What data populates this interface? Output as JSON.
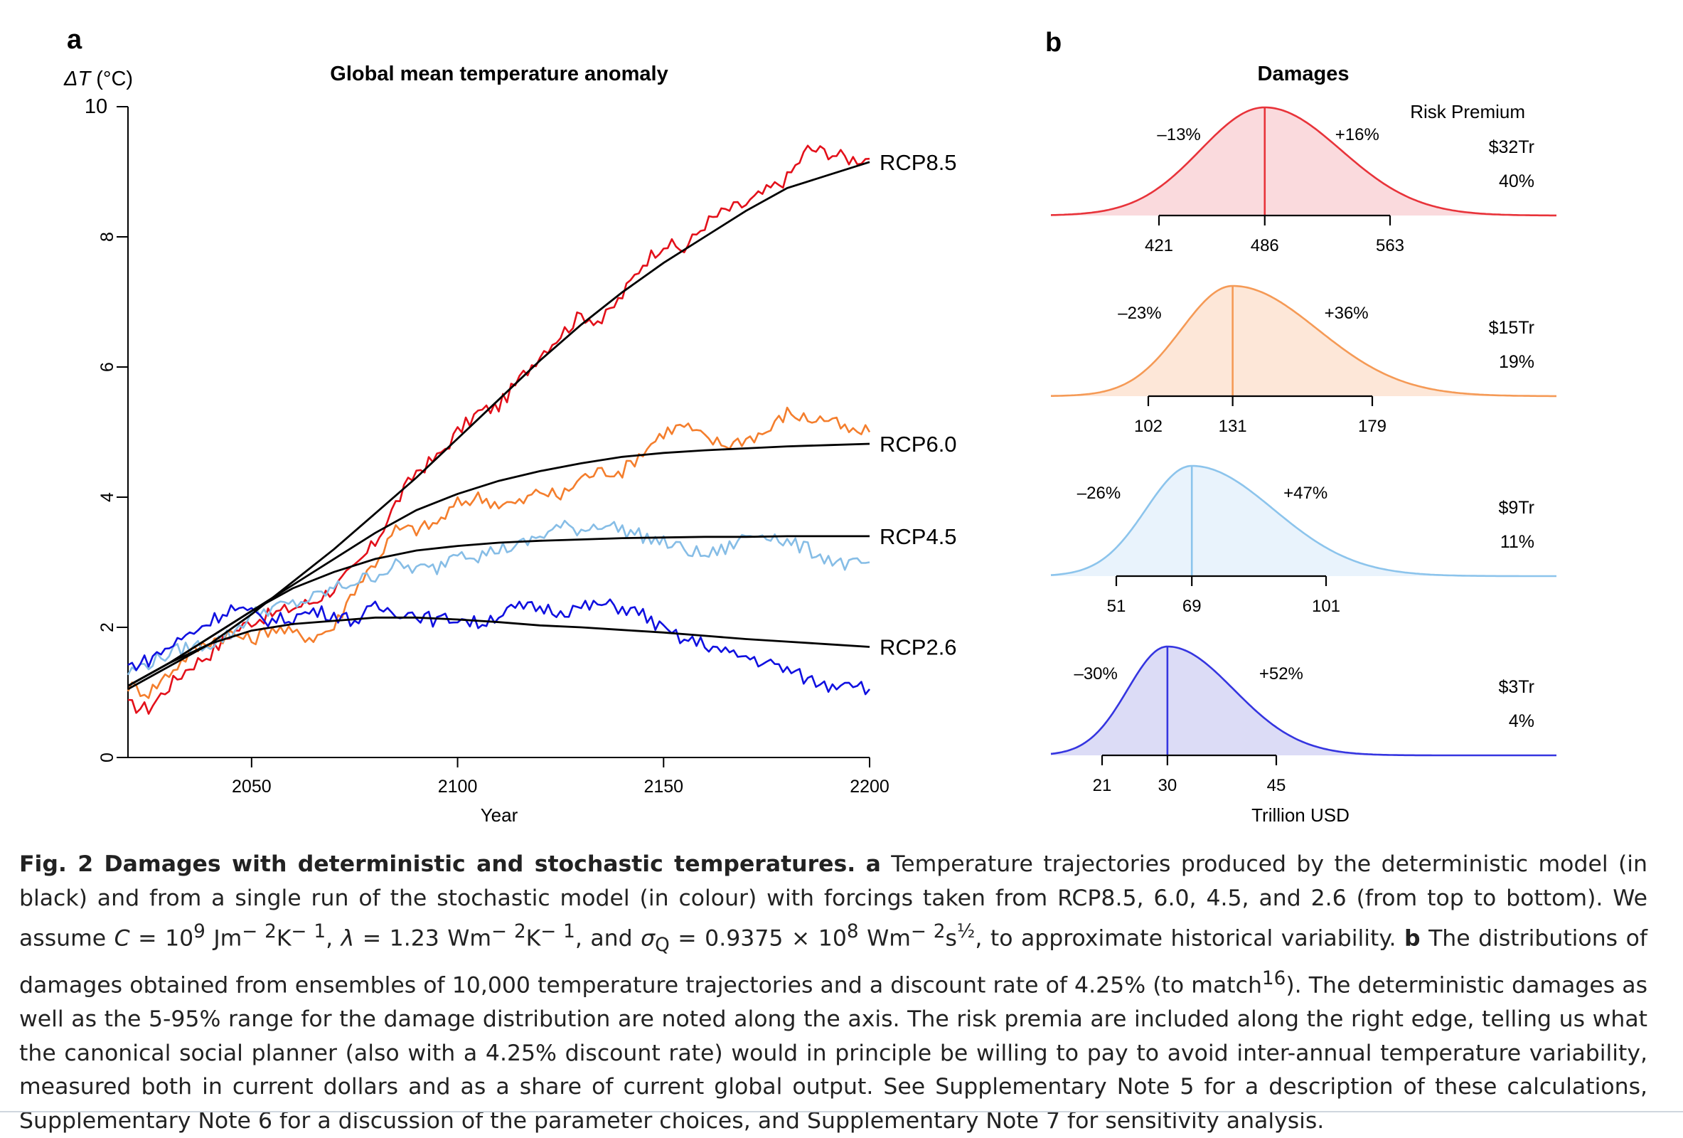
{
  "panel_a": {
    "letter": "a",
    "title": "Global mean temperature anomaly",
    "ylabel_symbol": "ΔT",
    "ylabel_unit": " (°C)",
    "xlabel": "Year",
    "xlim": [
      2020,
      2200
    ],
    "ylim": [
      0,
      10
    ],
    "xticks": [
      "2050",
      "2100",
      "2150",
      "2200"
    ],
    "yticks": [
      "0",
      "2",
      "4",
      "6",
      "8",
      "10"
    ]
  },
  "panel_b": {
    "letter": "b",
    "title": "Damages",
    "xlabel": "Trillion USD",
    "risk_premium_label": "Risk Premium"
  },
  "caption": {
    "fig_label": "Fig. 2 Damages with deterministic and stochastic temperatures.",
    "a_label": "a",
    "seg1": " Temperature trajectories produced by the deterministic model (in black) and from a single run of the stochastic model (in colour) with forcings taken from RCP8.5, 6.0, 4.5, and 2.6 (from top to bottom). We assume ",
    "seg2": "C",
    "seg3": " = 10",
    "seg4": "9",
    "seg5": " Jm",
    "seg6": "− 2",
    "seg7": "K",
    "seg8": "− 1",
    "seg9": ", ",
    "seg10": "λ",
    "seg11": " = 1.23 Wm",
    "seg12": "− 2",
    "seg13": "K",
    "seg14": "− 1",
    "seg15": ", and ",
    "seg16": "σ",
    "seg17": "Q",
    "seg18": " = 0.9375 × 10",
    "seg19": "8",
    "seg20": " Wm",
    "seg21": "− 2",
    "seg22": "s",
    "seg23": "½",
    "seg24": ", to approximate historical variability. ",
    "b_label": "b",
    "seg25": " The distributions of damages obtained from ensembles of 10,000 temperature trajectories and a discount rate of 4.25% (to match",
    "seg26": "16",
    "seg27": "). The deterministic damages as well as the 5-95% range for the damage distribution are noted along the axis. The risk premia are included along the right edge, telling us what the canonical social planner (also with a 4.25% discount rate) would in principle be willing to pay to avoid inter-annual temperature variability, measured both in current dollars and as a share of current global output. See Supplementary Note 5 for a description of these calculations, Supplementary Note 6 for a discussion of the parameter choices, and Supplementary Note 7 for sensitivity analysis."
  },
  "chart_data": [
    {
      "type": "line",
      "title": "Global mean temperature anomaly",
      "xlabel": "Year",
      "ylabel": "ΔT (°C)",
      "xlim": [
        2020,
        2200
      ],
      "ylim": [
        0,
        10
      ],
      "grid": false,
      "series": [
        {
          "name": "RCP8.5",
          "color": "#e3101a",
          "deterministic": [
            [
              2020,
              1.05
            ],
            [
              2030,
              1.4
            ],
            [
              2040,
              1.75
            ],
            [
              2050,
              2.2
            ],
            [
              2060,
              2.7
            ],
            [
              2070,
              3.2
            ],
            [
              2080,
              3.75
            ],
            [
              2090,
              4.3
            ],
            [
              2100,
              4.9
            ],
            [
              2110,
              5.5
            ],
            [
              2120,
              6.1
            ],
            [
              2130,
              6.65
            ],
            [
              2140,
              7.15
            ],
            [
              2150,
              7.6
            ],
            [
              2160,
              8.0
            ],
            [
              2170,
              8.4
            ],
            [
              2180,
              8.75
            ],
            [
              2190,
              8.95
            ],
            [
              2200,
              9.15
            ]
          ],
          "stochastic": [
            [
              2020,
              0.8
            ],
            [
              2025,
              0.75
            ],
            [
              2030,
              1.1
            ],
            [
              2035,
              1.4
            ],
            [
              2040,
              1.6
            ],
            [
              2045,
              1.9
            ],
            [
              2050,
              2.1
            ],
            [
              2055,
              2.2
            ],
            [
              2060,
              2.3
            ],
            [
              2065,
              2.4
            ],
            [
              2070,
              2.6
            ],
            [
              2075,
              2.9
            ],
            [
              2080,
              3.3
            ],
            [
              2085,
              3.9
            ],
            [
              2090,
              4.4
            ],
            [
              2095,
              4.6
            ],
            [
              2100,
              5.0
            ],
            [
              2105,
              5.3
            ],
            [
              2110,
              5.4
            ],
            [
              2115,
              5.8
            ],
            [
              2120,
              6.2
            ],
            [
              2125,
              6.5
            ],
            [
              2130,
              6.8
            ],
            [
              2135,
              6.7
            ],
            [
              2140,
              7.1
            ],
            [
              2145,
              7.6
            ],
            [
              2150,
              7.9
            ],
            [
              2155,
              7.8
            ],
            [
              2160,
              8.2
            ],
            [
              2165,
              8.4
            ],
            [
              2170,
              8.5
            ],
            [
              2175,
              8.7
            ],
            [
              2180,
              8.9
            ],
            [
              2185,
              9.35
            ],
            [
              2190,
              9.3
            ],
            [
              2195,
              9.2
            ],
            [
              2200,
              9.2
            ]
          ]
        },
        {
          "name": "RCP6.0",
          "color": "#f47e2d",
          "deterministic": [
            [
              2020,
              1.1
            ],
            [
              2030,
              1.45
            ],
            [
              2040,
              1.85
            ],
            [
              2050,
              2.25
            ],
            [
              2060,
              2.65
            ],
            [
              2070,
              3.05
            ],
            [
              2080,
              3.45
            ],
            [
              2090,
              3.8
            ],
            [
              2100,
              4.05
            ],
            [
              2110,
              4.25
            ],
            [
              2120,
              4.4
            ],
            [
              2130,
              4.52
            ],
            [
              2140,
              4.62
            ],
            [
              2150,
              4.68
            ],
            [
              2160,
              4.72
            ],
            [
              2170,
              4.75
            ],
            [
              2180,
              4.78
            ],
            [
              2190,
              4.8
            ],
            [
              2200,
              4.82
            ]
          ],
          "stochastic": [
            [
              2020,
              1.1
            ],
            [
              2025,
              1.0
            ],
            [
              2030,
              1.3
            ],
            [
              2035,
              1.6
            ],
            [
              2040,
              1.8
            ],
            [
              2045,
              1.9
            ],
            [
              2050,
              1.8
            ],
            [
              2055,
              2.0
            ],
            [
              2060,
              1.9
            ],
            [
              2065,
              1.85
            ],
            [
              2070,
              2.0
            ],
            [
              2075,
              2.6
            ],
            [
              2080,
              3.0
            ],
            [
              2085,
              3.5
            ],
            [
              2090,
              3.5
            ],
            [
              2095,
              3.6
            ],
            [
              2100,
              3.9
            ],
            [
              2105,
              4.0
            ],
            [
              2110,
              3.9
            ],
            [
              2115,
              3.9
            ],
            [
              2120,
              4.1
            ],
            [
              2125,
              4.0
            ],
            [
              2130,
              4.3
            ],
            [
              2135,
              4.4
            ],
            [
              2140,
              4.4
            ],
            [
              2145,
              4.7
            ],
            [
              2150,
              5.0
            ],
            [
              2155,
              5.1
            ],
            [
              2160,
              4.9
            ],
            [
              2165,
              4.8
            ],
            [
              2170,
              4.9
            ],
            [
              2175,
              5.0
            ],
            [
              2180,
              5.3
            ],
            [
              2185,
              5.2
            ],
            [
              2190,
              5.2
            ],
            [
              2195,
              5.0
            ],
            [
              2200,
              5.0
            ]
          ]
        },
        {
          "name": "RCP4.5",
          "color": "#86bde6",
          "deterministic": [
            [
              2020,
              1.1
            ],
            [
              2030,
              1.45
            ],
            [
              2040,
              1.85
            ],
            [
              2050,
              2.25
            ],
            [
              2060,
              2.6
            ],
            [
              2070,
              2.85
            ],
            [
              2080,
              3.05
            ],
            [
              2090,
              3.18
            ],
            [
              2100,
              3.25
            ],
            [
              2110,
              3.3
            ],
            [
              2120,
              3.33
            ],
            [
              2130,
              3.35
            ],
            [
              2140,
              3.37
            ],
            [
              2150,
              3.38
            ],
            [
              2160,
              3.39
            ],
            [
              2170,
              3.39
            ],
            [
              2180,
              3.4
            ],
            [
              2190,
              3.4
            ],
            [
              2200,
              3.4
            ]
          ],
          "stochastic": [
            [
              2020,
              1.3
            ],
            [
              2025,
              1.45
            ],
            [
              2030,
              1.6
            ],
            [
              2035,
              1.7
            ],
            [
              2040,
              1.75
            ],
            [
              2045,
              1.9
            ],
            [
              2050,
              2.2
            ],
            [
              2055,
              2.3
            ],
            [
              2060,
              2.35
            ],
            [
              2065,
              2.45
            ],
            [
              2070,
              2.6
            ],
            [
              2075,
              2.7
            ],
            [
              2080,
              2.8
            ],
            [
              2085,
              2.95
            ],
            [
              2090,
              2.9
            ],
            [
              2095,
              2.9
            ],
            [
              2100,
              3.2
            ],
            [
              2105,
              3.1
            ],
            [
              2110,
              3.2
            ],
            [
              2115,
              3.25
            ],
            [
              2120,
              3.4
            ],
            [
              2125,
              3.55
            ],
            [
              2130,
              3.5
            ],
            [
              2135,
              3.6
            ],
            [
              2140,
              3.5
            ],
            [
              2145,
              3.4
            ],
            [
              2150,
              3.3
            ],
            [
              2155,
              3.2
            ],
            [
              2160,
              3.1
            ],
            [
              2165,
              3.2
            ],
            [
              2170,
              3.4
            ],
            [
              2175,
              3.45
            ],
            [
              2180,
              3.3
            ],
            [
              2185,
              3.2
            ],
            [
              2190,
              3.05
            ],
            [
              2195,
              2.95
            ],
            [
              2200,
              3.0
            ]
          ]
        },
        {
          "name": "RCP2.6",
          "color": "#1010e0",
          "deterministic": [
            [
              2020,
              1.1
            ],
            [
              2030,
              1.45
            ],
            [
              2040,
              1.75
            ],
            [
              2050,
              1.95
            ],
            [
              2060,
              2.05
            ],
            [
              2070,
              2.1
            ],
            [
              2080,
              2.15
            ],
            [
              2090,
              2.15
            ],
            [
              2100,
              2.12
            ],
            [
              2110,
              2.08
            ],
            [
              2120,
              2.03
            ],
            [
              2130,
              2.0
            ],
            [
              2140,
              1.96
            ],
            [
              2150,
              1.92
            ],
            [
              2160,
              1.87
            ],
            [
              2170,
              1.82
            ],
            [
              2180,
              1.78
            ],
            [
              2190,
              1.74
            ],
            [
              2200,
              1.7
            ]
          ],
          "stochastic": [
            [
              2020,
              1.4
            ],
            [
              2025,
              1.5
            ],
            [
              2030,
              1.7
            ],
            [
              2035,
              1.9
            ],
            [
              2040,
              2.1
            ],
            [
              2045,
              2.3
            ],
            [
              2050,
              2.2
            ],
            [
              2055,
              2.1
            ],
            [
              2060,
              2.15
            ],
            [
              2065,
              2.25
            ],
            [
              2070,
              2.2
            ],
            [
              2075,
              2.1
            ],
            [
              2080,
              2.3
            ],
            [
              2085,
              2.25
            ],
            [
              2090,
              2.2
            ],
            [
              2095,
              2.1
            ],
            [
              2100,
              2.15
            ],
            [
              2105,
              2.05
            ],
            [
              2110,
              2.2
            ],
            [
              2115,
              2.3
            ],
            [
              2120,
              2.3
            ],
            [
              2125,
              2.25
            ],
            [
              2130,
              2.3
            ],
            [
              2135,
              2.35
            ],
            [
              2140,
              2.3
            ],
            [
              2145,
              2.2
            ],
            [
              2150,
              1.95
            ],
            [
              2155,
              1.8
            ],
            [
              2160,
              1.75
            ],
            [
              2165,
              1.6
            ],
            [
              2170,
              1.55
            ],
            [
              2175,
              1.45
            ],
            [
              2180,
              1.35
            ],
            [
              2185,
              1.2
            ],
            [
              2190,
              1.1
            ],
            [
              2195,
              1.2
            ],
            [
              2200,
              1.05
            ]
          ]
        }
      ]
    },
    {
      "type": "area",
      "title": "Damages",
      "xlabel": "Trillion USD",
      "panels": [
        {
          "name": "RCP8.5",
          "color": "#e8333a",
          "fill": "#fadadd",
          "deterministic": 486,
          "p5": 421,
          "p95": 563,
          "low_pct": "–13%",
          "high_pct": "+16%",
          "premium_usd": "$32Tr",
          "premium_pct": "40%",
          "tick_labels": [
            "421",
            "486",
            "563"
          ]
        },
        {
          "name": "RCP6.0",
          "color": "#f59a56",
          "fill": "#fde7d8",
          "deterministic": 131,
          "p5": 102,
          "p95": 179,
          "low_pct": "–23%",
          "high_pct": "+36%",
          "premium_usd": "$15Tr",
          "premium_pct": "19%",
          "tick_labels": [
            "102",
            "131",
            "179"
          ]
        },
        {
          "name": "RCP4.5",
          "color": "#8cc4ec",
          "fill": "#e9f3fc",
          "deterministic": 69,
          "p5": 51,
          "p95": 101,
          "low_pct": "–26%",
          "high_pct": "+47%",
          "premium_usd": "$9Tr",
          "premium_pct": "11%",
          "tick_labels": [
            "51",
            "69",
            "101"
          ]
        },
        {
          "name": "RCP2.6",
          "color": "#3535e0",
          "fill": "#dcdcf6",
          "deterministic": 30,
          "p5": 21,
          "p95": 45,
          "low_pct": "–30%",
          "high_pct": "+52%",
          "premium_usd": "$3Tr",
          "premium_pct": "4%",
          "tick_labels": [
            "21",
            "30",
            "45"
          ]
        }
      ]
    }
  ]
}
